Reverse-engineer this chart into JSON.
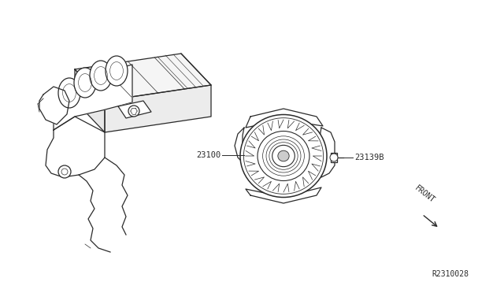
{
  "bg_color": "#ffffff",
  "line_color": "#2a2a2a",
  "text_color": "#2a2a2a",
  "label_23100": "23100",
  "label_23139B": "23139B",
  "label_FRONT": "FRONT",
  "label_R2310028": "R2310028",
  "fig_width": 6.4,
  "fig_height": 3.72,
  "dpi": 100
}
